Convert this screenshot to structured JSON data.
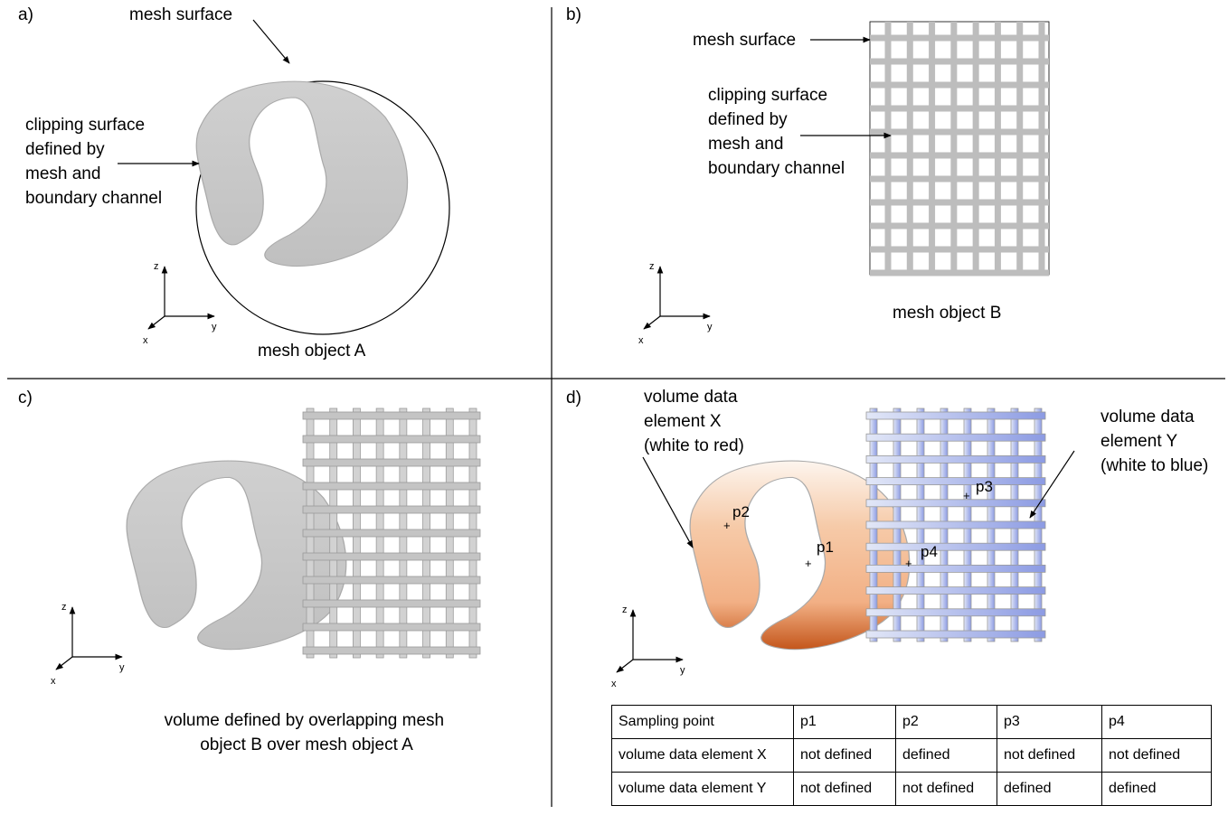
{
  "panels": {
    "a": {
      "letter": "a)",
      "mesh_surface_label": "mesh surface",
      "clip_label": [
        "clipping surface",
        "defined by",
        "mesh and",
        "boundary channel"
      ],
      "caption": "mesh object A"
    },
    "b": {
      "letter": "b)",
      "mesh_surface_label": "mesh surface",
      "clip_label": [
        "clipping surface",
        "defined by",
        "mesh and",
        "boundary channel"
      ],
      "caption": "mesh object B"
    },
    "c": {
      "letter": "c)",
      "caption": [
        "volume defined by overlapping mesh",
        "object B over mesh object A"
      ]
    },
    "d": {
      "letter": "d)",
      "element_x_label": [
        "volume data",
        "element X",
        "(white to red)"
      ],
      "element_y_label": [
        "volume data",
        "element Y",
        "(white to blue)"
      ],
      "points": [
        "p1",
        "p2",
        "p3",
        "p4"
      ]
    }
  },
  "axes": {
    "z": "z",
    "y": "y",
    "x": "x"
  },
  "colors": {
    "region_gray": "#c8c8c8",
    "grid_gray": "#b4b4b4",
    "orange_light": "#fbeee3",
    "orange_mid": "#f2b48a",
    "orange_dark": "#c8581c",
    "blue_light": "#dfe4f6",
    "blue_dark": "#8f9ee4"
  },
  "table": {
    "header": [
      "Sampling point",
      "p1",
      "p2",
      "p3",
      "p4"
    ],
    "rows": [
      [
        "volume data element X",
        "not defined",
        "defined",
        "not defined",
        "not defined"
      ],
      [
        "volume data element Y",
        "not defined",
        "not defined",
        "defined",
        "defined"
      ]
    ]
  }
}
